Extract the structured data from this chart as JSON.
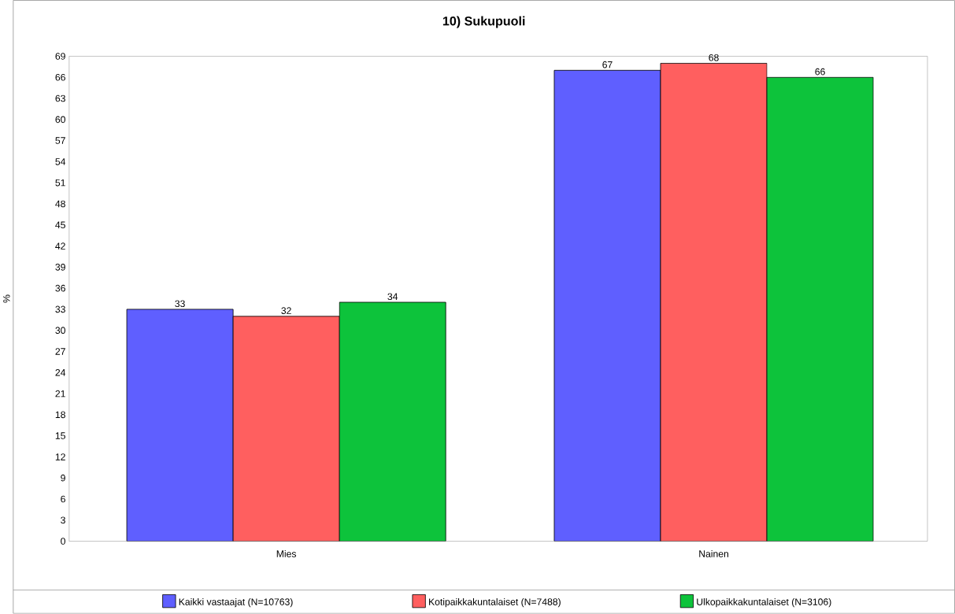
{
  "chart_data": {
    "type": "bar",
    "title": "10) Sukupuoli",
    "ylabel": "%",
    "categories": [
      "Mies",
      "Nainen"
    ],
    "series": [
      {
        "name": "Kaikki vastaajat (N=10763)",
        "color": "#5f5fff",
        "values": [
          33,
          67
        ]
      },
      {
        "name": "Kotipaikkakuntalaiset (N=7488)",
        "color": "#ff5f5f",
        "values": [
          32,
          68
        ]
      },
      {
        "name": "Ulkopaikkakuntalaiset (N=3106)",
        "color": "#0dc33b",
        "values": [
          34,
          66
        ]
      }
    ],
    "ylim": [
      0,
      69
    ],
    "yticks": [
      0,
      3,
      6,
      9,
      12,
      15,
      18,
      21,
      24,
      27,
      30,
      33,
      36,
      39,
      42,
      45,
      48,
      51,
      54,
      57,
      60,
      63,
      66,
      69
    ],
    "data_labels": true,
    "grid": false,
    "legend": "bottom"
  }
}
